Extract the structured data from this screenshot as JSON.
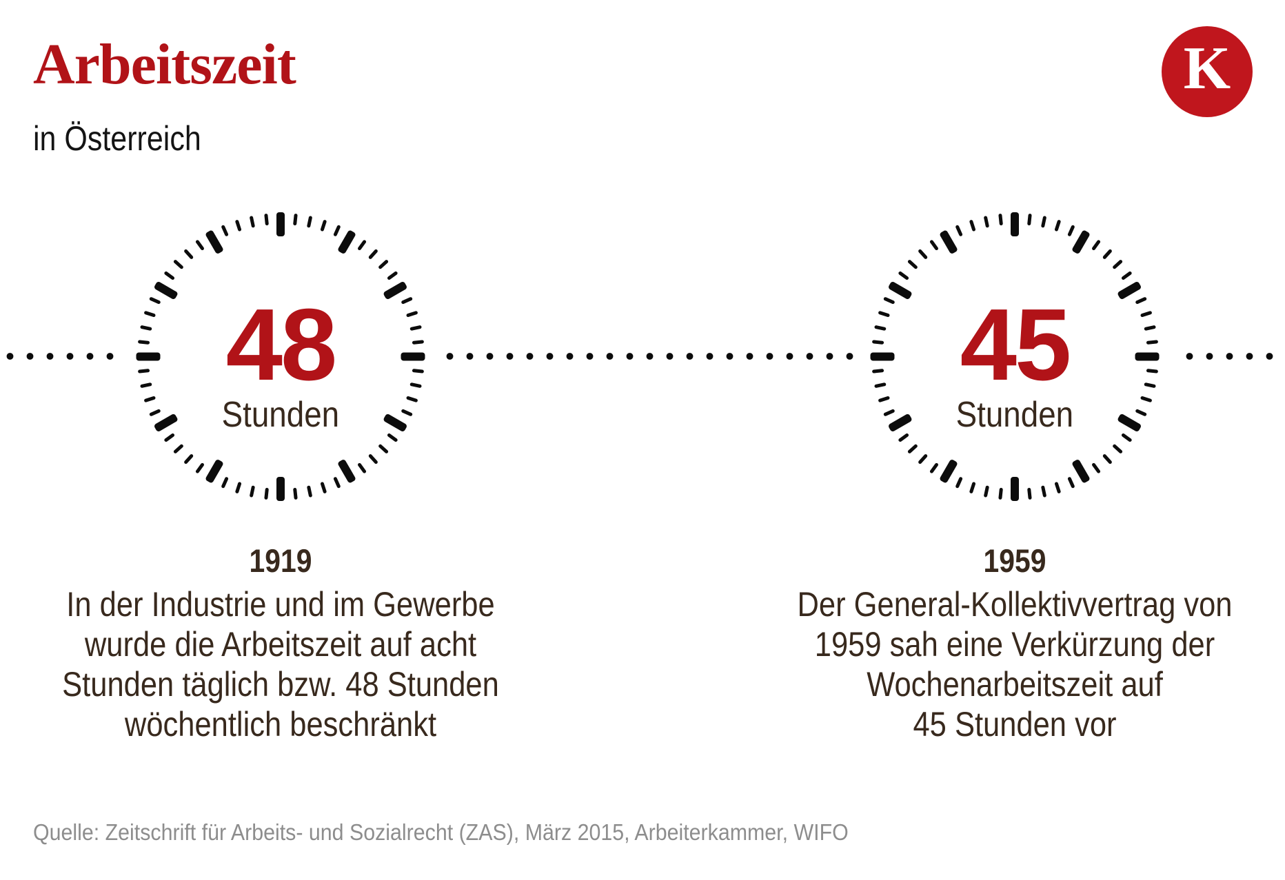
{
  "header": {
    "title": "Arbeitszeit",
    "subtitle": "in Österreich",
    "logo_letter": "K"
  },
  "colors": {
    "accent_red": "#b11318",
    "logo_red": "#c0161d",
    "dark_text": "#38291d",
    "tick_black": "#0c0c0c",
    "source_gray": "#8d8d8d",
    "bg": "#ffffff"
  },
  "events": [
    {
      "value": "48",
      "unit": "Stunden",
      "year": "1919",
      "description": "In der Industrie und im Gewerbe\nwurde die Arbeitszeit auf acht\nStunden täglich bzw. 48 Stunden\nwöchentlich beschränkt"
    },
    {
      "value": "45",
      "unit": "Stunden",
      "year": "1959",
      "description": "Der General-Kollektivvertrag von\n1959 sah eine Verkürzung der\nWochenarbeitszeit auf\n45 Stunden vor"
    }
  ],
  "source": "Quelle: Zeitschrift für Arbeits- und Sozialrecht (ZAS), März 2015, Arbeiterkammer, WIFO",
  "chart_data": {
    "type": "timeline",
    "title": "Arbeitszeit in Österreich",
    "x": [
      1919,
      1959
    ],
    "values": [
      48,
      45
    ],
    "unit": "Stunden pro Woche",
    "annotations": [
      "1919: In der Industrie und im Gewerbe wurde die Arbeitszeit auf acht Stunden täglich bzw. 48 Stunden wöchentlich beschränkt",
      "1959: Der General-Kollektivvertrag von 1959 sah eine Verkürzung der Wochenarbeitszeit auf 45 Stunden vor"
    ]
  }
}
